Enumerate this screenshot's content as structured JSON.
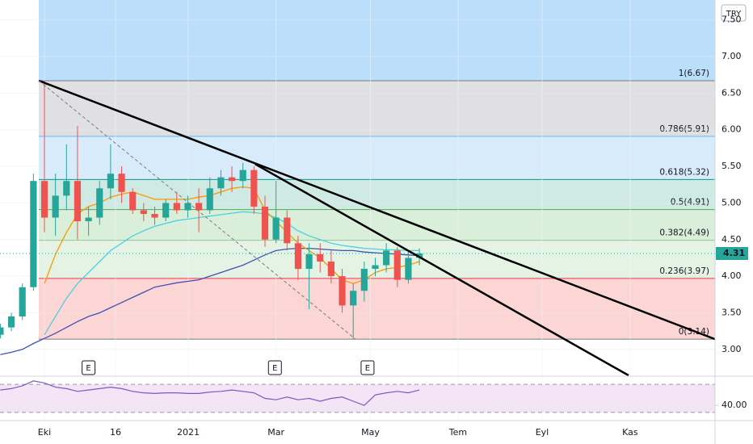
{
  "chart_data": {
    "type": "candlestick",
    "currency": "TRY",
    "xlim": [
      -4.03,
      60.81
    ],
    "xticks": [
      {
        "value": 0,
        "label": "Eki"
      },
      {
        "value": 6.45,
        "label": "16"
      },
      {
        "value": 13.04,
        "label": "2021"
      },
      {
        "value": 21.0,
        "label": "Mar"
      },
      {
        "value": 29.56,
        "label": "May"
      },
      {
        "value": 37.51,
        "label": "Tem"
      },
      {
        "value": 45.13,
        "label": "Eyl"
      },
      {
        "value": 53.11,
        "label": "Kas"
      }
    ],
    "ylim": [
      2.645,
      7.772
    ],
    "yticks": [
      {
        "value": 3,
        "label": "3.00"
      },
      {
        "value": 3.5,
        "label": "3.50"
      },
      {
        "value": 4,
        "label": "4.00"
      },
      {
        "value": 4.5,
        "label": "4.50"
      },
      {
        "value": 5,
        "label": "5.00"
      },
      {
        "value": 5.5,
        "label": "5.50"
      },
      {
        "value": 6,
        "label": "6.00"
      },
      {
        "value": 6.5,
        "label": "6.50"
      },
      {
        "value": 7,
        "label": "7.00"
      },
      {
        "value": 7.5,
        "label": "7.50"
      }
    ],
    "x": [
      -4,
      -3,
      -2,
      -1,
      0,
      1,
      2,
      3,
      4,
      5,
      6,
      7,
      8,
      9,
      10,
      11,
      12,
      13,
      14,
      15,
      16,
      17,
      18,
      19,
      20,
      21,
      22,
      23,
      24,
      25,
      26,
      27,
      28,
      29,
      30,
      31,
      32,
      33,
      34
    ],
    "open": [
      3.2,
      3.3,
      3.45,
      3.85,
      5.3,
      4.8,
      5.1,
      5.3,
      4.75,
      4.8,
      5.2,
      5.4,
      5.15,
      4.9,
      4.85,
      4.8,
      5.0,
      4.9,
      5.0,
      4.9,
      5.2,
      5.35,
      5.3,
      5.45,
      4.95,
      4.5,
      4.8,
      4.45,
      4.1,
      4.3,
      4.2,
      4.0,
      3.6,
      3.8,
      4.1,
      4.15,
      4.35,
      3.95,
      4.25
    ],
    "high": [
      3.35,
      3.5,
      3.9,
      5.4,
      6.67,
      5.4,
      5.8,
      6.05,
      4.95,
      5.3,
      5.8,
      5.5,
      5.2,
      5.0,
      4.95,
      5.05,
      5.15,
      5.1,
      5.2,
      5.35,
      5.45,
      5.5,
      5.55,
      5.5,
      5.1,
      5.3,
      4.9,
      4.55,
      4.45,
      4.45,
      4.35,
      4.1,
      3.9,
      4.2,
      4.25,
      4.45,
      4.4,
      4.35,
      4.38
    ],
    "low": [
      3.15,
      3.25,
      3.4,
      3.8,
      4.6,
      4.55,
      4.9,
      4.5,
      4.55,
      4.7,
      5.05,
      5.0,
      4.85,
      4.75,
      4.7,
      4.75,
      4.85,
      4.8,
      4.6,
      4.85,
      5.1,
      5.15,
      5.2,
      4.85,
      4.4,
      4.45,
      4.35,
      3.95,
      3.55,
      4.05,
      3.9,
      3.5,
      3.14,
      3.65,
      4.0,
      4.05,
      3.85,
      3.9,
      4.15
    ],
    "close": [
      3.3,
      3.45,
      3.85,
      5.3,
      4.8,
      5.1,
      5.3,
      4.75,
      4.8,
      5.2,
      5.4,
      5.15,
      4.9,
      4.85,
      4.8,
      5.0,
      4.9,
      5.0,
      4.9,
      5.2,
      5.35,
      5.3,
      5.45,
      4.95,
      4.5,
      4.8,
      4.45,
      4.1,
      4.3,
      4.2,
      4.0,
      3.6,
      3.8,
      4.1,
      4.15,
      4.35,
      3.95,
      4.25,
      4.31
    ],
    "up_color": "#26a69a",
    "down_color": "#ef5350",
    "overlays": [
      {
        "color": "#3f51b5",
        "values": [
          2.93,
          2.96,
          3.0,
          3.08,
          3.15,
          3.22,
          3.3,
          3.38,
          3.45,
          3.5,
          3.57,
          3.64,
          3.71,
          3.78,
          3.85,
          3.88,
          3.91,
          3.93,
          3.95,
          4.0,
          4.05,
          4.1,
          4.15,
          4.22,
          4.29,
          4.35,
          4.37,
          4.38,
          4.38,
          4.37,
          4.36,
          4.35,
          4.35,
          4.33,
          4.32,
          4.31,
          4.3,
          4.29,
          4.28
        ]
      },
      {
        "color": "#4dd0e1",
        "values": [
          null,
          null,
          null,
          null,
          3.2,
          3.45,
          3.7,
          3.9,
          4.05,
          4.2,
          4.35,
          4.45,
          4.55,
          4.62,
          4.68,
          4.72,
          4.76,
          4.78,
          4.8,
          4.82,
          4.84,
          4.86,
          4.88,
          4.87,
          4.85,
          4.8,
          4.72,
          4.62,
          4.55,
          4.5,
          4.45,
          4.42,
          4.4,
          4.38,
          4.37,
          4.36,
          4.36,
          4.35,
          4.35
        ]
      },
      {
        "color": "#ff9800",
        "values": [
          null,
          null,
          null,
          null,
          3.9,
          4.3,
          4.6,
          4.85,
          4.95,
          5.0,
          5.08,
          5.12,
          5.15,
          5.1,
          5.05,
          5.05,
          5.05,
          5.05,
          5.08,
          5.1,
          5.15,
          5.2,
          5.22,
          5.2,
          4.9,
          4.75,
          4.6,
          4.45,
          4.35,
          4.25,
          4.1,
          3.95,
          3.9,
          3.95,
          4.05,
          4.1,
          4.12,
          4.15,
          4.2
        ]
      }
    ],
    "fib": {
      "x_start": -0.51,
      "levels": [
        {
          "value": 6.67,
          "label": "1(6.67)",
          "color": "#787b86",
          "fill": "#e0e0e3"
        },
        {
          "value": 5.91,
          "label": "0.786(5.91)",
          "color": "#64b5f6",
          "fill": "#d7ebfb"
        },
        {
          "value": 5.32,
          "label": "0.618(5.32)",
          "color": "#089981",
          "fill": "#cfeae2"
        },
        {
          "value": 4.91,
          "label": "0.5(4.91)",
          "color": "#4caf50",
          "fill": "#d9efd9"
        },
        {
          "value": 4.49,
          "label": "0.382(4.49)",
          "color": "#81c784",
          "fill": "#e4f3e3"
        },
        {
          "value": 3.97,
          "label": "0.236(3.97)",
          "color": "#f23645",
          "fill": "#fcd5d5"
        },
        {
          "value": 3.14,
          "label": "0(3.14)",
          "color": "#787b86",
          "fill": null
        }
      ]
    },
    "trendlines": [
      {
        "x": [
          -0.51,
          60.81
        ],
        "y": [
          6.67,
          3.14
        ],
        "dashed": false
      },
      {
        "x": [
          19.12,
          52.97
        ],
        "y": [
          5.53,
          2.645
        ],
        "dashed": false
      },
      {
        "x": [
          -0.51,
          28.2
        ],
        "y": [
          6.67,
          3.14
        ],
        "dashed": true
      }
    ],
    "events": [
      {
        "x": 4.0,
        "label": "E"
      },
      {
        "x": 20.9,
        "label": "E"
      },
      {
        "x": 29.3,
        "label": "E"
      }
    ],
    "rsi": {
      "color": "#7e57c2",
      "ylim": [
        19.4,
        80.6
      ],
      "yticks": [
        {
          "value": 40,
          "label": "40.00"
        }
      ],
      "bands": [
        70,
        30
      ],
      "values": [
        62,
        64,
        68,
        75,
        72,
        66,
        64,
        60,
        62,
        64,
        66,
        64,
        60,
        58,
        57,
        58,
        58,
        57,
        57,
        59,
        60,
        62,
        60,
        58,
        50,
        48,
        52,
        48,
        50,
        46,
        50,
        52,
        46,
        40,
        55,
        58,
        60,
        58,
        62
      ]
    }
  }
}
